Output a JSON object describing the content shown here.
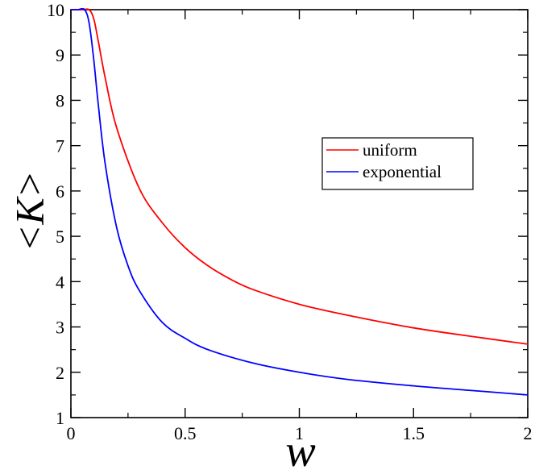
{
  "chart_data": {
    "type": "line",
    "title": "",
    "xlabel": "w",
    "ylabel": "<K>",
    "xlim": [
      0,
      2
    ],
    "ylim": [
      1,
      10
    ],
    "xticks": [
      0,
      0.5,
      1,
      1.5,
      2
    ],
    "xtick_labels": [
      "0",
      "0.5",
      "1",
      "1.5",
      "2"
    ],
    "yticks": [
      1,
      2,
      3,
      4,
      5,
      6,
      7,
      8,
      9,
      10
    ],
    "ytick_labels": [
      "1",
      "2",
      "3",
      "4",
      "5",
      "6",
      "7",
      "8",
      "9",
      "10"
    ],
    "grid": false,
    "legend_position": "right",
    "series": [
      {
        "name": "uniform",
        "color": "#ff0000",
        "x": [
          0,
          0.05,
          0.08,
          0.1,
          0.12,
          0.15,
          0.2,
          0.3,
          0.4,
          0.5,
          0.6,
          0.7,
          0.8,
          1.0,
          1.2,
          1.5,
          1.8,
          2.0
        ],
        "y": [
          10,
          10,
          10,
          9.8,
          9.3,
          8.5,
          7.4,
          6.05,
          5.3,
          4.75,
          4.35,
          4.05,
          3.82,
          3.5,
          3.27,
          2.98,
          2.76,
          2.62
        ]
      },
      {
        "name": "exponential",
        "color": "#0000ff",
        "x": [
          0,
          0.03,
          0.06,
          0.08,
          0.1,
          0.12,
          0.15,
          0.2,
          0.25,
          0.3,
          0.4,
          0.5,
          0.6,
          0.8,
          1.0,
          1.2,
          1.5,
          1.8,
          2.0
        ],
        "y": [
          10,
          10,
          10,
          9.7,
          8.9,
          7.9,
          6.6,
          5.2,
          4.35,
          3.8,
          3.1,
          2.75,
          2.5,
          2.2,
          2.0,
          1.85,
          1.7,
          1.58,
          1.5
        ]
      }
    ]
  }
}
